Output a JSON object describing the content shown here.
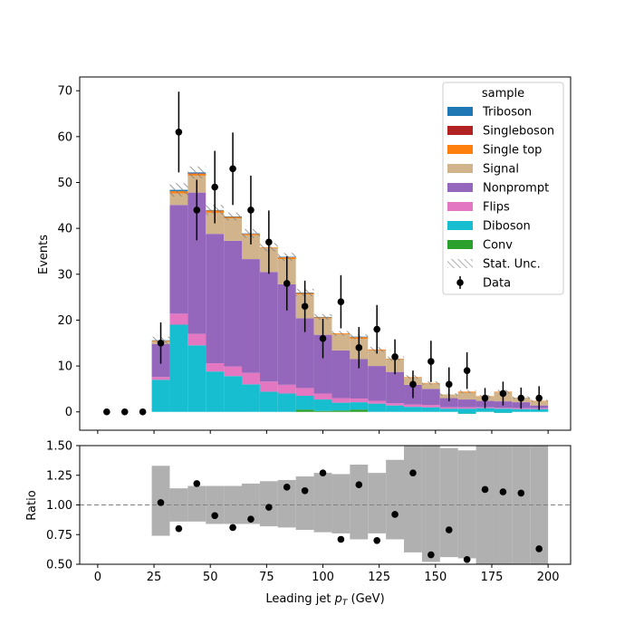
{
  "chart_data": [
    {
      "panel": "main",
      "type": "stacked-histogram",
      "xlabel": "Leading jet  $p_T$ (GeV)",
      "ylabel": "Events",
      "xlim": [
        -8,
        210
      ],
      "ylim": [
        -4,
        73
      ],
      "xticks": [
        0,
        25,
        50,
        75,
        100,
        125,
        150,
        175,
        200
      ],
      "yticks": [
        0,
        10,
        20,
        30,
        40,
        50,
        60,
        70
      ],
      "bin_width": 8,
      "bin_edges": [
        24,
        32,
        40,
        48,
        56,
        64,
        72,
        80,
        88,
        96,
        104,
        112,
        120,
        128,
        136,
        144,
        152,
        160,
        168,
        176,
        184,
        192,
        200
      ],
      "stack_order": [
        "Conv",
        "Diboson",
        "Flips",
        "Nonprompt",
        "Signal",
        "Single top",
        "Singleboson",
        "Triboson"
      ],
      "series": [
        {
          "name": "Conv",
          "color": "#2ca02c",
          "values": [
            0,
            0,
            0,
            0,
            0,
            0,
            0,
            0,
            0.5,
            0.2,
            0.3,
            0.5,
            0,
            0,
            0,
            0,
            0,
            -0.4,
            0,
            -0.2,
            0,
            0
          ]
        },
        {
          "name": "Diboson",
          "color": "#17becf",
          "values": [
            7,
            19,
            14.5,
            8.8,
            7.8,
            6,
            4.4,
            4,
            3,
            2.5,
            1.7,
            1.6,
            1.8,
            1.4,
            1.1,
            1,
            0.7,
            1.1,
            0.8,
            0.9,
            0.6,
            0.6
          ]
        },
        {
          "name": "Flips",
          "color": "#e377c2",
          "values": [
            0.6,
            2.4,
            2.5,
            1.8,
            2.1,
            2.5,
            2.2,
            1.9,
            1.7,
            1.3,
            1,
            0.8,
            0.6,
            0.5,
            0.5,
            0.5,
            0.3,
            0.3,
            0.2,
            0.2,
            0.2,
            0.2
          ]
        },
        {
          "name": "Nonprompt",
          "color": "#9467bd",
          "values": [
            7.2,
            23.7,
            30.8,
            28.2,
            27.4,
            24.8,
            23.9,
            21.9,
            15.2,
            12.8,
            10.4,
            8.6,
            7.6,
            6.8,
            4.3,
            3.5,
            2,
            1.7,
            1.4,
            1.4,
            1.3,
            0.6
          ]
        },
        {
          "name": "Signal",
          "color": "#d2b48c",
          "values": [
            0.5,
            2.5,
            3.7,
            4.6,
            4.9,
            5.2,
            5.3,
            5.5,
            5.2,
            3.6,
            3.5,
            4.4,
            3.4,
            2.8,
            1.6,
            1.2,
            0.8,
            1.5,
            0.9,
            2,
            1,
            0.9
          ]
        },
        {
          "name": "Single top",
          "color": "#ff7f0e",
          "values": [
            0.2,
            0.5,
            0.4,
            0.5,
            0.3,
            0.3,
            0.1,
            0.4,
            0.3,
            0.2,
            0.2,
            0.4,
            0.2,
            0.1,
            0.1,
            0.1,
            0,
            0.2,
            0.1,
            0.1,
            0,
            0.1
          ]
        },
        {
          "name": "Singleboson",
          "color": "#b22222",
          "values": [
            0,
            0,
            0.1,
            0,
            0,
            0,
            0,
            0,
            0,
            0,
            0,
            0,
            0,
            0,
            0,
            0,
            0,
            0,
            0,
            0,
            0,
            0
          ]
        },
        {
          "name": "Triboson",
          "color": "#1f77b4",
          "values": [
            0.1,
            0.3,
            0.2,
            0.1,
            0.1,
            0.1,
            0,
            0.1,
            0.1,
            0.1,
            0,
            0.1,
            0,
            0,
            0,
            0,
            0,
            0,
            0,
            0,
            0,
            0
          ]
        }
      ],
      "stat_unc": {
        "label": "Stat. Unc.",
        "fraction": [
          0.05,
          0.03,
          0.025,
          0.025,
          0.02,
          0.025,
          0.025,
          0.025,
          0.03,
          0.03,
          0.03,
          0.03,
          0.04,
          0.04,
          0.05,
          0.06,
          0.07,
          0.07,
          0.08,
          0.09,
          0.09,
          0.1
        ]
      },
      "data": {
        "name": "Data",
        "x": [
          4,
          12,
          20,
          28,
          36,
          44,
          52,
          60,
          68,
          76,
          84,
          92,
          100,
          108,
          116,
          124,
          132,
          140,
          148,
          156,
          164,
          172,
          180,
          188,
          196
        ],
        "y": [
          0,
          0,
          0,
          15,
          61,
          44,
          49,
          53,
          44,
          37,
          28,
          23,
          16,
          24,
          14,
          18,
          12,
          6,
          11,
          6,
          9,
          3,
          4,
          3,
          3
        ],
        "yerr": [
          0,
          0,
          0,
          4.5,
          8.8,
          6.6,
          7.9,
          7.9,
          7.5,
          6.9,
          5.9,
          5.6,
          4.3,
          5.8,
          4.5,
          5.3,
          3.8,
          3,
          4.5,
          3.7,
          4,
          2.2,
          2.6,
          2.3,
          2.6
        ]
      },
      "legend": {
        "title": "sample",
        "placement": "upper right",
        "entries": [
          "Triboson",
          "Singleboson",
          "Single top",
          "Signal",
          "Nonprompt",
          "Flips",
          "Diboson",
          "Conv",
          "Stat. Unc.",
          "Data"
        ]
      }
    },
    {
      "panel": "ratio",
      "type": "scatter",
      "xlabel": "Leading jet  $p_T$ (GeV)",
      "ylabel": "Ratio",
      "xlim": [
        -8,
        210
      ],
      "ylim": [
        0.5,
        1.5
      ],
      "yticks": [
        0.5,
        0.75,
        1.0,
        1.25,
        1.5
      ],
      "reference_line": 1.0,
      "x": [
        28,
        36,
        44,
        52,
        60,
        68,
        76,
        84,
        92,
        100,
        108,
        116,
        124,
        132,
        140,
        148,
        156,
        164,
        172,
        180,
        188,
        196
      ],
      "y": [
        1.02,
        0.8,
        1.18,
        0.91,
        0.81,
        0.88,
        0.98,
        1.15,
        1.12,
        1.27,
        0.71,
        1.17,
        0.7,
        0.92,
        1.27,
        0.58,
        0.79,
        0.54,
        1.13,
        1.11,
        1.1,
        0.63
      ],
      "band_lower": [
        0.74,
        0.86,
        0.86,
        0.84,
        0.84,
        0.84,
        0.82,
        0.81,
        0.79,
        0.77,
        0.76,
        0.71,
        0.76,
        0.71,
        0.6,
        0.52,
        0.56,
        0.55,
        0.5,
        0.5,
        0.5,
        0.5
      ],
      "band_upper": [
        1.33,
        1.14,
        1.16,
        1.16,
        1.16,
        1.18,
        1.2,
        1.21,
        1.24,
        1.27,
        1.26,
        1.34,
        1.27,
        1.38,
        1.5,
        1.5,
        1.48,
        1.46,
        1.5,
        1.5,
        1.5,
        1.5
      ],
      "band_color": "#b0b0b0"
    }
  ]
}
